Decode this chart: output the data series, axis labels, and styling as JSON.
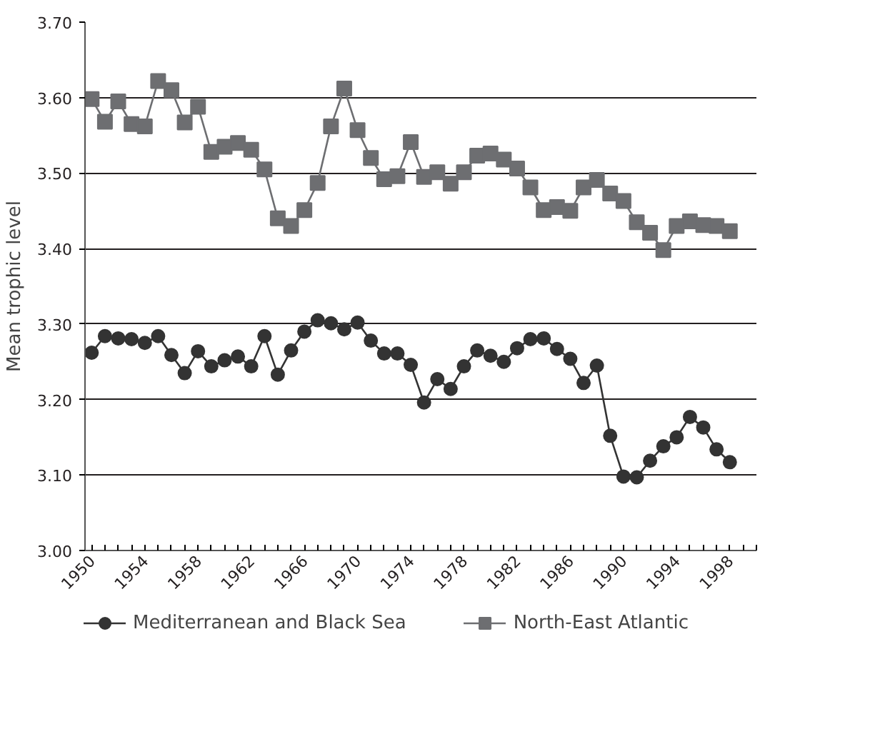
{
  "chart_data": {
    "type": "line",
    "ylabel": "Mean trophic level",
    "x": [
      1950,
      1951,
      1952,
      1953,
      1954,
      1955,
      1956,
      1957,
      1958,
      1959,
      1960,
      1961,
      1962,
      1963,
      1964,
      1965,
      1966,
      1967,
      1968,
      1969,
      1970,
      1971,
      1972,
      1973,
      1974,
      1975,
      1976,
      1977,
      1978,
      1979,
      1980,
      1981,
      1982,
      1983,
      1984,
      1985,
      1986,
      1987,
      1988,
      1989,
      1990,
      1991,
      1992,
      1993,
      1994,
      1995,
      1996,
      1997,
      1998
    ],
    "series": [
      {
        "name": "Mediterranean and Black Sea",
        "color": "#333333",
        "marker": "circle",
        "values": [
          3.262,
          3.284,
          3.281,
          3.28,
          3.275,
          3.284,
          3.259,
          3.235,
          3.264,
          3.244,
          3.252,
          3.257,
          3.244,
          3.284,
          3.233,
          3.265,
          3.29,
          3.305,
          3.301,
          3.293,
          3.302,
          3.278,
          3.261,
          3.261,
          3.246,
          3.196,
          3.227,
          3.214,
          3.244,
          3.265,
          3.258,
          3.25,
          3.268,
          3.28,
          3.281,
          3.267,
          3.254,
          3.222,
          3.245,
          3.152,
          3.098,
          3.097,
          3.119,
          3.138,
          3.15,
          3.177,
          3.163,
          3.134,
          3.117
        ]
      },
      {
        "name": "North-East Atlantic",
        "color": "#6d6e71",
        "marker": "square",
        "values": [
          3.598,
          3.568,
          3.595,
          3.565,
          3.562,
          3.622,
          3.61,
          3.567,
          3.588,
          3.528,
          3.535,
          3.54,
          3.531,
          3.505,
          3.44,
          3.43,
          3.451,
          3.487,
          3.562,
          3.612,
          3.557,
          3.52,
          3.492,
          3.496,
          3.541,
          3.495,
          3.501,
          3.486,
          3.501,
          3.523,
          3.526,
          3.518,
          3.506,
          3.481,
          3.451,
          3.455,
          3.45,
          3.481,
          3.491,
          3.473,
          3.463,
          3.435,
          3.421,
          3.398,
          3.43,
          3.436,
          3.431,
          3.43,
          3.423
        ]
      }
    ],
    "xlim": [
      1949.5,
      2000
    ],
    "xticks": [
      1950,
      1954,
      1958,
      1962,
      1966,
      1970,
      1974,
      1978,
      1982,
      1986,
      1990,
      1994,
      1998
    ],
    "ylim": [
      3.0,
      3.7
    ],
    "yticks": [
      {
        "value": 3.0,
        "label": "3.00"
      },
      {
        "value": 3.1,
        "label": "3.10"
      },
      {
        "value": 3.2,
        "label": "3.20"
      },
      {
        "value": 3.3,
        "label": "3.30"
      },
      {
        "value": 3.4,
        "label": "3.40"
      },
      {
        "value": 3.5,
        "label": "3.50"
      },
      {
        "value": 3.6,
        "label": "3.60"
      },
      {
        "value": 3.7,
        "label": "3.70"
      }
    ],
    "grid": "y",
    "legend": "bottom",
    "line_style": "solid"
  }
}
